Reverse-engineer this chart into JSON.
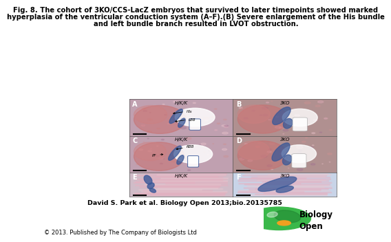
{
  "title_line1": "Fig. 8. The cohort of 3KO/CCS-LacZ embryos that survived to later timepoints showed marked",
  "title_line2": "hyperplasia of the ventricular conduction system (A–F).(B) Severe enlargement of the His bundle",
  "title_line3": "and left bundle branch resulted in LVOT obstruction.",
  "citation": "David S. Park et al. Biology Open 2013;bio.20135785",
  "copyright": "© 2013. Published by The Company of Biologists Ltd",
  "background_color": "#ffffff",
  "title_fontsize": 7.2,
  "citation_fontsize": 6.8,
  "copyright_fontsize": 6.0,
  "panel_letters": [
    [
      "A",
      "B"
    ],
    [
      "C",
      "D"
    ],
    [
      "E",
      "F"
    ]
  ],
  "panel_cond_left": [
    "H/K/K",
    "H/K/K",
    "H/K/K"
  ],
  "panel_cond_right": [
    "3KO",
    "3KO",
    "3KO"
  ],
  "row1_left_bg": "#c0a0b0",
  "row1_right_bg": "#b09090",
  "row2_left_bg": "#c0a0b0",
  "row2_right_bg": "#b09090",
  "row3_left_bg": "#d0bcc8",
  "row3_right_bg": "#c8d4e8",
  "blue_color": "#3a5898",
  "red_tissue": "#c87070",
  "pink_tissue": "#e8b0c0",
  "biology_open_green": "#3ab84a"
}
